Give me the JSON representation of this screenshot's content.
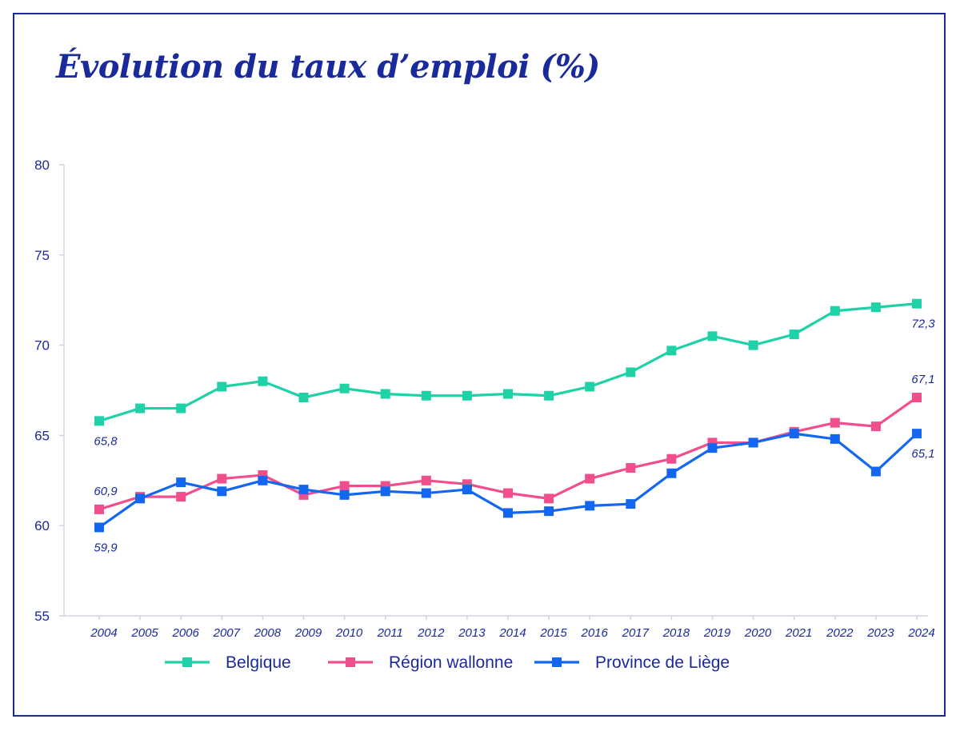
{
  "chart_data": {
    "type": "line",
    "title": "Évolution du taux d’emploi (%)",
    "xlabel": "",
    "ylabel": "",
    "ylim": [
      55,
      80
    ],
    "yticks": [
      "55",
      "60",
      "65",
      "70",
      "75",
      "80"
    ],
    "categories": [
      "2004",
      "2005",
      "2006",
      "2007",
      "2008",
      "2009",
      "2010",
      "2011",
      "2012",
      "2013",
      "2014",
      "2015",
      "2016",
      "2017",
      "2018",
      "2019",
      "2020",
      "2021",
      "2022",
      "2023",
      "2024"
    ],
    "grid": false,
    "legend_position": "bottom",
    "series": [
      {
        "name": "Belgique",
        "color": "#1fd1a6",
        "marker": "square",
        "values": [
          65.8,
          66.5,
          66.5,
          67.7,
          68.0,
          67.1,
          67.6,
          67.3,
          67.2,
          67.2,
          67.3,
          67.2,
          67.7,
          68.5,
          69.7,
          70.5,
          70.0,
          70.6,
          71.9,
          72.1,
          72.3
        ]
      },
      {
        "name": "Région wallonne",
        "color": "#f04e8c",
        "marker": "square",
        "values": [
          60.9,
          61.6,
          61.6,
          62.6,
          62.8,
          61.7,
          62.2,
          62.2,
          62.5,
          62.3,
          61.8,
          61.5,
          62.6,
          63.2,
          63.7,
          64.6,
          64.6,
          65.2,
          65.7,
          65.5,
          67.1
        ]
      },
      {
        "name": "Province de Liège",
        "color": "#1366f0",
        "marker": "square",
        "values": [
          59.9,
          61.5,
          62.4,
          61.9,
          62.5,
          62.0,
          61.7,
          61.9,
          61.8,
          62.0,
          60.7,
          60.8,
          61.1,
          61.2,
          62.9,
          64.3,
          64.6,
          65.1,
          64.8,
          63.0,
          65.1
        ]
      }
    ],
    "annotations": [
      {
        "series": 0,
        "index": 0,
        "text": "65,8",
        "pos": "below"
      },
      {
        "series": 0,
        "index": 20,
        "text": "72,3",
        "pos": "below"
      },
      {
        "series": 1,
        "index": 0,
        "text": "60,9",
        "pos": "above"
      },
      {
        "series": 1,
        "index": 20,
        "text": "67,1",
        "pos": "above"
      },
      {
        "series": 2,
        "index": 0,
        "text": "59,9",
        "pos": "below"
      },
      {
        "series": 2,
        "index": 20,
        "text": "65,1",
        "pos": "below"
      }
    ]
  }
}
